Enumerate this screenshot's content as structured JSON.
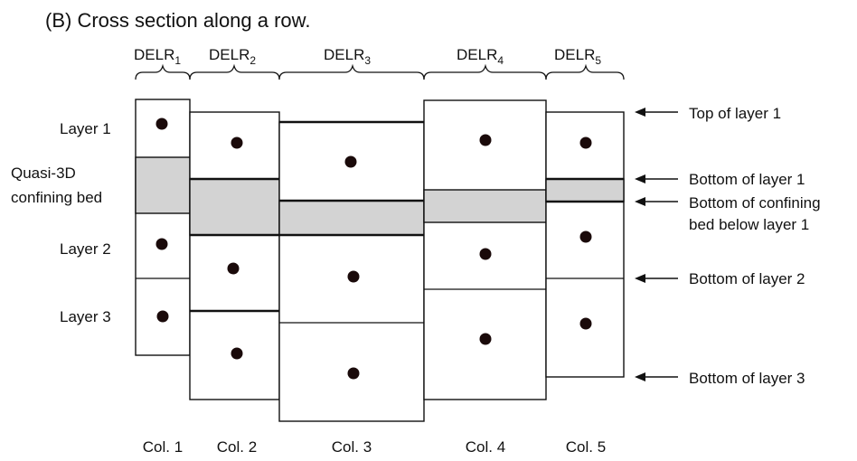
{
  "title": "(B) Cross section along a row.",
  "colors": {
    "confining_bed": "#d3d3d3",
    "node": "#1a0a0a",
    "line": "#111111"
  },
  "delr": [
    {
      "base": "DELR",
      "sub": "1"
    },
    {
      "base": "DELR",
      "sub": "2"
    },
    {
      "base": "DELR",
      "sub": "3"
    },
    {
      "base": "DELR",
      "sub": "4"
    },
    {
      "base": "DELR",
      "sub": "5"
    }
  ],
  "left_labels": {
    "layer1": "Layer 1",
    "quasi_line1": "Quasi-3D",
    "quasi_line2": "confining bed",
    "layer2": "Layer 2",
    "layer3": "Layer 3"
  },
  "right_labels": {
    "top_layer1": "Top of layer 1",
    "bottom_layer1": "Bottom of layer 1",
    "bottom_confining_line1": "Bottom of confining",
    "bottom_confining_line2": "bed below layer 1",
    "bottom_layer2": "Bottom of layer 2",
    "bottom_layer3": "Bottom of layer 3"
  },
  "columns": [
    "Col. 1",
    "Col. 2",
    "Col. 3",
    "Col. 4",
    "Col. 5"
  ]
}
